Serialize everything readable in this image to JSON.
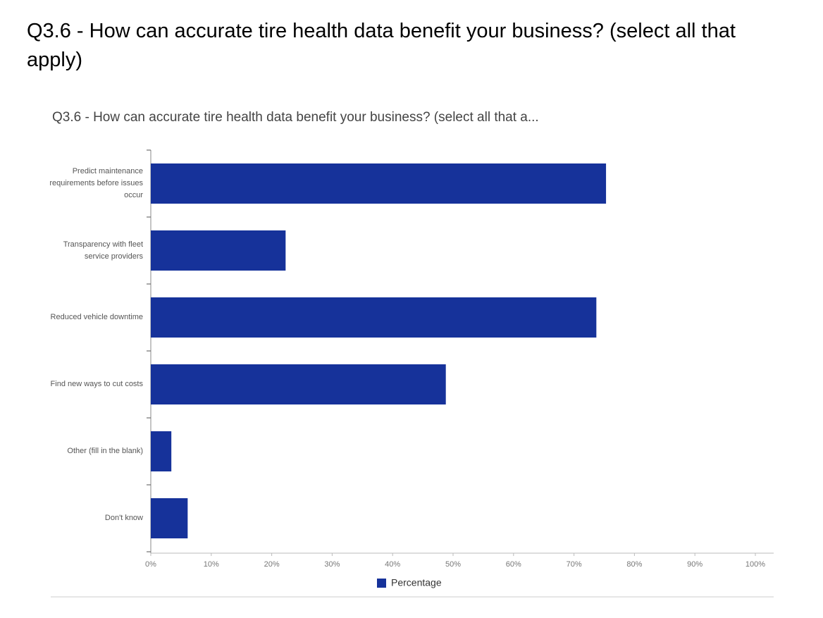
{
  "header": {
    "title": "Q3.6 - How can accurate tire health data benefit your business? (select all that apply)"
  },
  "chart_data": {
    "type": "bar",
    "orientation": "horizontal",
    "title": "Q3.6 - How can accurate tire health data benefit your business? (select all that a...",
    "categories": [
      "Predict maintenance requirements before issues occur",
      "Transparency with fleet service providers",
      "Reduced vehicle downtime",
      "Find new ways to cut costs",
      "Other (fill in the blank)",
      "Don't know"
    ],
    "series": [
      {
        "name": "Percentage",
        "color": "#16329a",
        "values": [
          75.3,
          22.3,
          73.7,
          48.8,
          3.4,
          6.1
        ]
      }
    ],
    "xlim": [
      0,
      100
    ],
    "xticks": [
      {
        "value": 0,
        "label": "0%"
      },
      {
        "value": 10,
        "label": "10%"
      },
      {
        "value": 20,
        "label": "20%"
      },
      {
        "value": 30,
        "label": "30%"
      },
      {
        "value": 40,
        "label": "40%"
      },
      {
        "value": 50,
        "label": "50%"
      },
      {
        "value": 60,
        "label": "60%"
      },
      {
        "value": 70,
        "label": "70%"
      },
      {
        "value": 80,
        "label": "80%"
      },
      {
        "value": 90,
        "label": "90%"
      },
      {
        "value": 100,
        "label": "100%"
      }
    ],
    "grid": false,
    "legend": "bottom"
  }
}
